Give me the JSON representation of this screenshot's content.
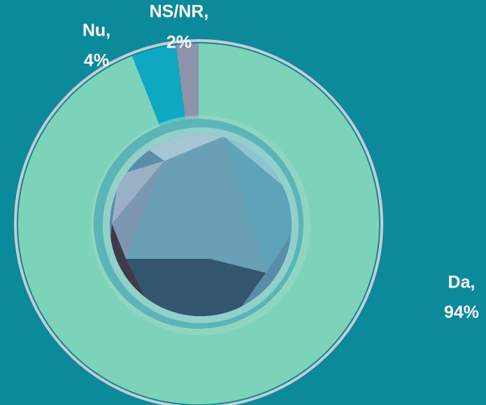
{
  "chart_data": {
    "type": "donut",
    "categories": [
      "Da,",
      "Nu,",
      "NS/NR,"
    ],
    "values": [
      94,
      4,
      2
    ],
    "value_labels": [
      "94%",
      "4%",
      "2%"
    ],
    "colors": [
      "#7dd3b7",
      "#0ea8c2",
      "#8d94aa"
    ]
  }
}
